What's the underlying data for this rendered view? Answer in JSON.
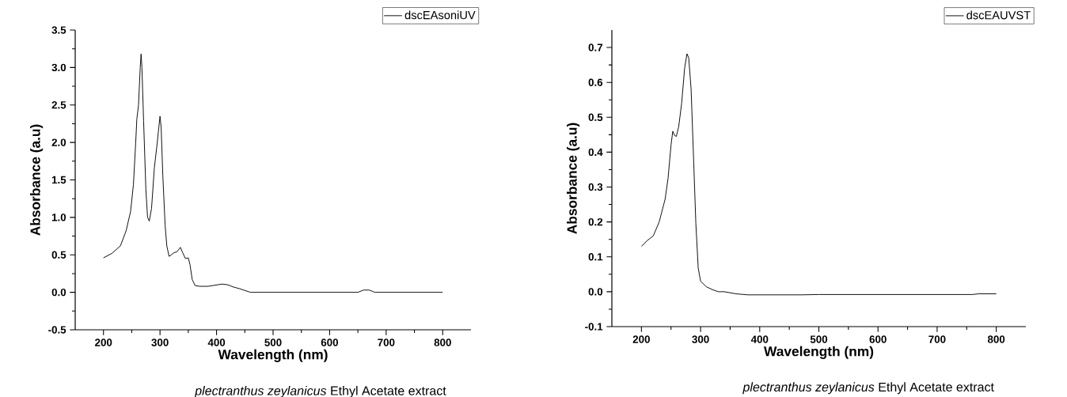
{
  "chart_data": [
    {
      "type": "line",
      "xlabel": "Wavelength (nm)",
      "ylabel": "Absorbance (a.u)",
      "annotations": [
        "*plectranthus zeylanicus* Ethyl Acetate extract"
      ],
      "legend": "top right",
      "xlim": [
        150,
        850
      ],
      "ylim": [
        -0.5,
        3.5
      ],
      "xticks": [
        200,
        300,
        400,
        500,
        600,
        700,
        800
      ],
      "yticks": [
        {
          "value": -0.5,
          "label": "-0.5"
        },
        {
          "value": 0,
          "label": "0.0"
        },
        0.5,
        {
          "value": 1,
          "label": "1.0"
        },
        1.5,
        {
          "value": 2,
          "label": "2.0"
        },
        2.5,
        {
          "value": 3,
          "label": "3.0"
        },
        3.5
      ],
      "series": [
        {
          "name": "dscEAsoniUV",
          "color": "#000000",
          "x": [
            200,
            215,
            230,
            240,
            248,
            253,
            257,
            259,
            262,
            265,
            266.5,
            268,
            271,
            275,
            278,
            281,
            285,
            290,
            295,
            300,
            302,
            305,
            309,
            312,
            316,
            320,
            325,
            330,
            336,
            340,
            345,
            350,
            353,
            357,
            362,
            370,
            385,
            410,
            420,
            430,
            440,
            460,
            500,
            600,
            650,
            660,
            670,
            680,
            700,
            800
          ],
          "values": [
            0.46,
            0.52,
            0.62,
            0.82,
            1.08,
            1.44,
            2.0,
            2.31,
            2.5,
            3.0,
            3.18,
            3.0,
            2.28,
            1.37,
            1.0,
            0.95,
            1.12,
            1.66,
            1.99,
            2.35,
            2.2,
            1.55,
            0.9,
            0.62,
            0.48,
            0.5,
            0.53,
            0.54,
            0.6,
            0.53,
            0.45,
            0.46,
            0.37,
            0.17,
            0.09,
            0.08,
            0.08,
            0.11,
            0.1,
            0.07,
            0.05,
            0.0,
            0.0,
            0.0,
            0.0,
            0.03,
            0.03,
            0.0,
            0.0,
            0.0
          ]
        }
      ]
    },
    {
      "type": "line",
      "xlabel": "Wavelength (nm)",
      "ylabel": "Absorbance (a.u)",
      "annotations": [
        "*plectranthus zeylanicus* Ethyl Acetate extract"
      ],
      "legend": "top right",
      "xlim": [
        150,
        850
      ],
      "ylim": [
        -0.1,
        0.75
      ],
      "xticks": [
        200,
        300,
        400,
        500,
        600,
        700,
        800
      ],
      "yticks": [
        -0.1,
        {
          "value": 0,
          "label": "0.0"
        },
        0.1,
        0.2,
        0.3,
        0.4,
        0.5,
        0.6,
        0.7
      ],
      "series": [
        {
          "name": "dscEAUVST",
          "color": "#000000",
          "x": [
            200,
            210,
            220,
            230,
            240,
            245,
            250,
            253,
            256,
            259,
            263,
            268,
            273,
            277,
            280,
            284,
            288,
            292,
            296,
            300,
            310,
            320,
            330,
            340,
            360,
            380,
            470,
            500,
            760,
            770,
            800
          ],
          "values": [
            0.13,
            0.147,
            0.16,
            0.2,
            0.265,
            0.325,
            0.42,
            0.46,
            0.448,
            0.445,
            0.473,
            0.54,
            0.64,
            0.682,
            0.67,
            0.58,
            0.39,
            0.196,
            0.068,
            0.03,
            0.014,
            0.006,
            0.0,
            0.0,
            -0.006,
            -0.009,
            -0.009,
            -0.008,
            -0.008,
            -0.006,
            -0.006
          ]
        }
      ]
    }
  ]
}
